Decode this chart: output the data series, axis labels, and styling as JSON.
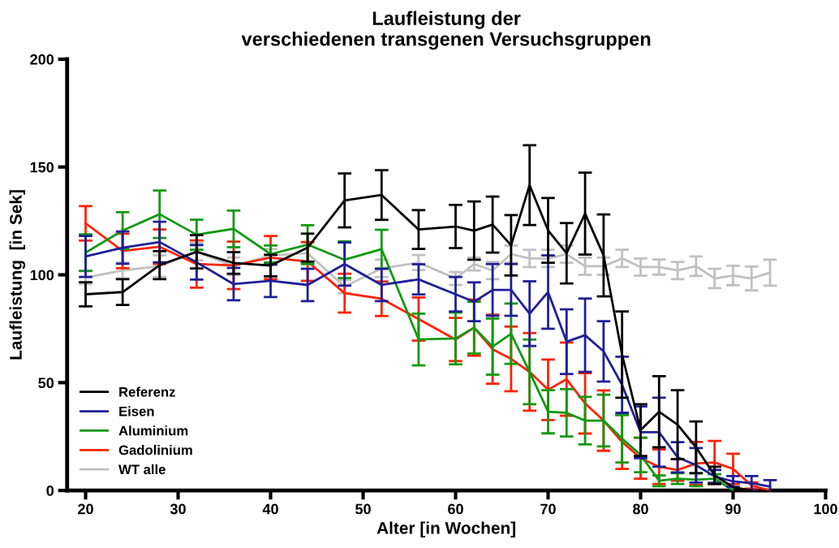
{
  "chart_data": {
    "type": "line",
    "title": "Laufleistung der\nverschiedenen transgenen Versuchsgruppen",
    "xlabel": "Alter [in Wochen]",
    "ylabel": "Laufleistung  [in Sek]",
    "xlim": [
      18,
      100
    ],
    "xticks": [
      20,
      30,
      40,
      50,
      60,
      70,
      80,
      90,
      100
    ],
    "ylim": [
      0,
      200
    ],
    "yticks": [
      0,
      50,
      100,
      150,
      200
    ],
    "grid": false,
    "legend": "bottom left",
    "marker": "none",
    "line_style": "solid",
    "series": [
      {
        "name": "Referenz",
        "color": "#000000",
        "x": [
          20,
          24,
          28,
          32,
          36,
          40,
          44,
          48,
          52,
          56,
          60,
          62,
          64,
          66,
          68,
          70,
          72,
          74,
          76,
          78,
          80,
          82,
          84,
          86,
          88,
          90,
          92
        ],
        "values": [
          91,
          92,
          104.5,
          110.7,
          105.5,
          104.3,
          112.6,
          134.5,
          137,
          121,
          122.4,
          120.5,
          123.3,
          113.7,
          141.6,
          120.6,
          110,
          128.4,
          109,
          63,
          28,
          36.5,
          30.5,
          20,
          7,
          1.5,
          0
        ],
        "errors": [
          5.6,
          6,
          6.5,
          7.7,
          5,
          5,
          6.5,
          12.5,
          11.5,
          9,
          10,
          13.5,
          13,
          14,
          18.5,
          15,
          14,
          19,
          19,
          20,
          12,
          16.5,
          16,
          12,
          4,
          null,
          null
        ]
      },
      {
        "name": "Eisen",
        "color": "#1f1f99",
        "x": [
          20,
          24,
          28,
          32,
          36,
          40,
          44,
          48,
          52,
          56,
          60,
          62,
          64,
          66,
          68,
          70,
          72,
          74,
          76,
          78,
          80,
          82,
          84,
          86,
          88,
          90,
          92,
          94
        ],
        "values": [
          108.5,
          112.6,
          115.2,
          105.8,
          95.7,
          97.2,
          95.3,
          105,
          95.3,
          97.9,
          91,
          87.5,
          93,
          93,
          82,
          92,
          69,
          72,
          64.5,
          49,
          27,
          27,
          15.4,
          11.7,
          6.5,
          4.2,
          3.4,
          1.8
        ],
        "errors": [
          9.5,
          7.5,
          9.4,
          8,
          7.5,
          7.5,
          7.5,
          10,
          7.5,
          7,
          8,
          9,
          12,
          12,
          15,
          17,
          15,
          17,
          14,
          13,
          12,
          16,
          7,
          8,
          3,
          2.5,
          3.3,
          3
        ]
      },
      {
        "name": "Aluminium",
        "color": "#119911",
        "x": [
          20,
          24,
          28,
          32,
          36,
          40,
          44,
          48,
          52,
          56,
          60,
          62,
          64,
          66,
          68,
          70,
          72,
          74,
          76,
          78,
          80,
          82,
          84,
          86,
          88,
          90
        ],
        "values": [
          110.3,
          120.5,
          128.1,
          118.6,
          121.3,
          109.6,
          114,
          107,
          111.9,
          70,
          70.5,
          75.5,
          66.7,
          72.7,
          55,
          36.5,
          36,
          32.4,
          32.4,
          24,
          16.5,
          4.5,
          5.5,
          5,
          5.5,
          0
        ],
        "errors": [
          8.5,
          8.5,
          11,
          7,
          8.5,
          4,
          9,
          8.5,
          9,
          12,
          12,
          12,
          13,
          14,
          15,
          10,
          11,
          11,
          12,
          11,
          8,
          2.5,
          2.5,
          3,
          2,
          null
        ]
      },
      {
        "name": "Gadolinium",
        "color": "#ff2200",
        "x": [
          20,
          24,
          28,
          32,
          36,
          40,
          44,
          48,
          52,
          56,
          60,
          62,
          64,
          66,
          68,
          70,
          72,
          74,
          76,
          78,
          80,
          82,
          84,
          86,
          88,
          90,
          92,
          94
        ],
        "values": [
          123.9,
          111.1,
          113,
          105,
          104.4,
          108,
          106.2,
          91.5,
          88.9,
          79.5,
          70,
          75.5,
          65.5,
          61,
          55,
          46.7,
          51.6,
          40.4,
          32.4,
          22.5,
          15,
          11,
          9.5,
          12.5,
          13,
          10,
          2.3,
          0
        ],
        "errors": [
          8,
          8,
          8,
          11,
          11,
          10,
          9,
          9,
          8,
          10,
          10,
          13,
          16,
          15,
          18,
          14,
          17,
          14,
          14,
          12.5,
          9.5,
          8,
          5,
          10,
          10,
          7,
          1.5,
          null
        ]
      },
      {
        "name": "WT alle",
        "color": "#c0c0c0",
        "x": [
          20,
          24,
          28,
          32,
          36,
          40,
          44,
          48,
          52,
          56,
          60,
          62,
          64,
          66,
          68,
          70,
          72,
          74,
          76,
          78,
          80,
          82,
          84,
          86,
          88,
          90,
          92,
          94
        ],
        "values": [
          98.7,
          102,
          104,
          110.7,
          104,
          109,
          110,
          94.5,
          103,
          105.7,
          98.3,
          105,
          102,
          109.6,
          107.6,
          107.6,
          109.6,
          104,
          104,
          107.6,
          103.6,
          103.6,
          102,
          104,
          98.3,
          99.7,
          98.3,
          101
        ],
        "errors": [
          3,
          3.7,
          5,
          4,
          4,
          3,
          5,
          3,
          4,
          3.5,
          3,
          3,
          4,
          4,
          4,
          4,
          4,
          4,
          4,
          4,
          4,
          3.5,
          4,
          4.5,
          4.5,
          4.5,
          5.5,
          6
        ]
      }
    ]
  }
}
